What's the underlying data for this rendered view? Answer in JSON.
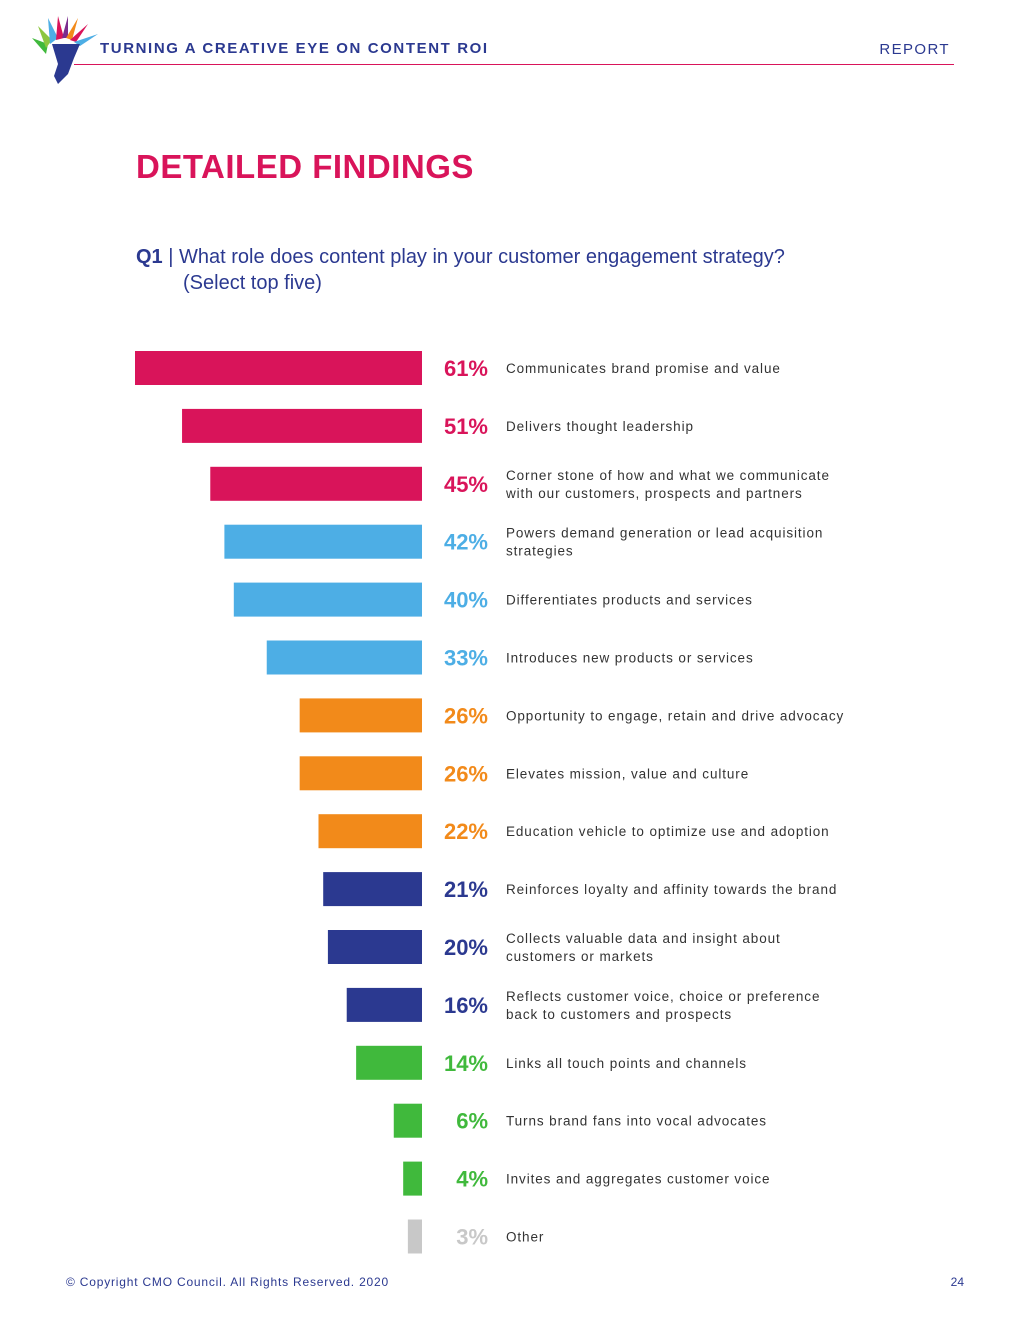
{
  "header": {
    "title": "TURNING A CREATIVE EYE ON CONTENT ROI",
    "report_label": "REPORT",
    "logo_icon": "hand-feather-logo-icon"
  },
  "section": {
    "title": "DETAILED FINDINGS"
  },
  "question": {
    "number": "Q1",
    "separator": "|",
    "text": "What role does content play in your customer engagement strategy?",
    "note": "(Select top five)"
  },
  "colors": {
    "magenta": "#d9145a",
    "sky": "#4daee5",
    "orange": "#f28a1a",
    "navy": "#2b3990",
    "green": "#40b93c",
    "grey": "#c8c8c8"
  },
  "chart_data": {
    "type": "bar",
    "orientation": "horizontal",
    "value_unit": "%",
    "xlim": [
      0,
      61
    ],
    "categories": [
      [
        "Communicates brand promise and value"
      ],
      [
        "Delivers thought leadership"
      ],
      [
        "Corner stone of how and what we communicate",
        "with our customers, prospects and partners"
      ],
      [
        "Powers demand generation or lead acquisition",
        "strategies"
      ],
      [
        "Differentiates products and services"
      ],
      [
        "Introduces new products or services"
      ],
      [
        "Opportunity to engage, retain and drive advocacy"
      ],
      [
        "Elevates mission, value and culture"
      ],
      [
        "Education vehicle to optimize use and adoption"
      ],
      [
        "Reinforces loyalty and affinity towards the brand"
      ],
      [
        "Collects valuable data and insight about",
        "customers or markets"
      ],
      [
        "Reflects customer voice, choice or preference",
        "back to customers and prospects"
      ],
      [
        "Links all touch points and channels"
      ],
      [
        "Turns brand fans into vocal advocates"
      ],
      [
        "Invites and aggregates customer voice"
      ],
      [
        "Other"
      ]
    ],
    "values": [
      61,
      51,
      45,
      42,
      40,
      33,
      26,
      26,
      22,
      21,
      20,
      16,
      14,
      6,
      4,
      3
    ],
    "value_labels": [
      "61%",
      "51%",
      "45%",
      "42%",
      "40%",
      "33%",
      "26%",
      "26%",
      "22%",
      "21%",
      "20%",
      "16%",
      "14%",
      "6%",
      "4%",
      "3%"
    ],
    "bar_colors": [
      "magenta",
      "magenta",
      "magenta",
      "sky",
      "sky",
      "sky",
      "orange",
      "orange",
      "orange",
      "navy",
      "navy",
      "navy",
      "green",
      "green",
      "green",
      "grey"
    ]
  },
  "footer": {
    "copyright": "© Copyright CMO Council. All Rights Reserved. 2020",
    "page_number": "24"
  }
}
